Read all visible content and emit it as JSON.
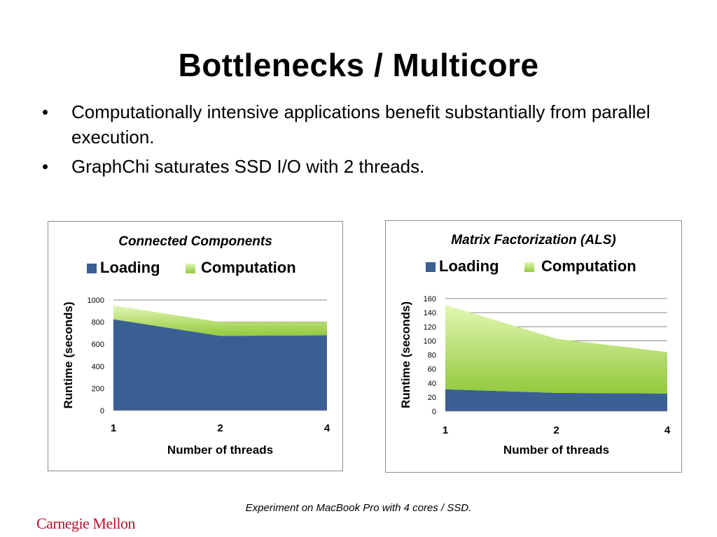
{
  "slide": {
    "title": "Bottlenecks / Multicore",
    "bullets": [
      "Computationally intensive applications benefit substantially from parallel execution.",
      "GraphChi saturates SSD I/O with 2 threads."
    ],
    "bullet_glyph": "•",
    "caption": "Experiment on MacBook Pro with 4 cores / SSD.",
    "logo_text": "Carnegie Mellon",
    "logo_color": "#b5122e"
  },
  "chart_data": [
    {
      "type": "area",
      "stacked": true,
      "title": "Connected Components",
      "xlabel": "Number of threads",
      "ylabel": "Runtime (seconds)",
      "categories": [
        "1",
        "2",
        "4"
      ],
      "yticks": [
        0,
        200,
        400,
        600,
        800,
        1000
      ],
      "ylim": [
        0,
        1000
      ],
      "grid": true,
      "legend": "top",
      "series": [
        {
          "name": "Loading",
          "values": [
            825,
            675,
            680
          ],
          "color": "#3a5f93"
        },
        {
          "name": "Computation",
          "values": [
            125,
            125,
            120
          ],
          "color": "#a6d85a"
        }
      ]
    },
    {
      "type": "area",
      "stacked": true,
      "title": "Matrix Factorization (ALS)",
      "xlabel": "Number of threads",
      "ylabel": "Runtime (seconds)",
      "categories": [
        "1",
        "2",
        "4"
      ],
      "yticks": [
        0,
        20,
        40,
        60,
        80,
        100,
        120,
        140,
        160
      ],
      "ylim": [
        0,
        160
      ],
      "grid": true,
      "legend": "top",
      "series": [
        {
          "name": "Loading",
          "values": [
            31,
            26,
            25
          ],
          "color": "#3a5f93"
        },
        {
          "name": "Computation",
          "values": [
            120,
            77,
            59
          ],
          "color": "#a6d85a"
        }
      ]
    }
  ]
}
